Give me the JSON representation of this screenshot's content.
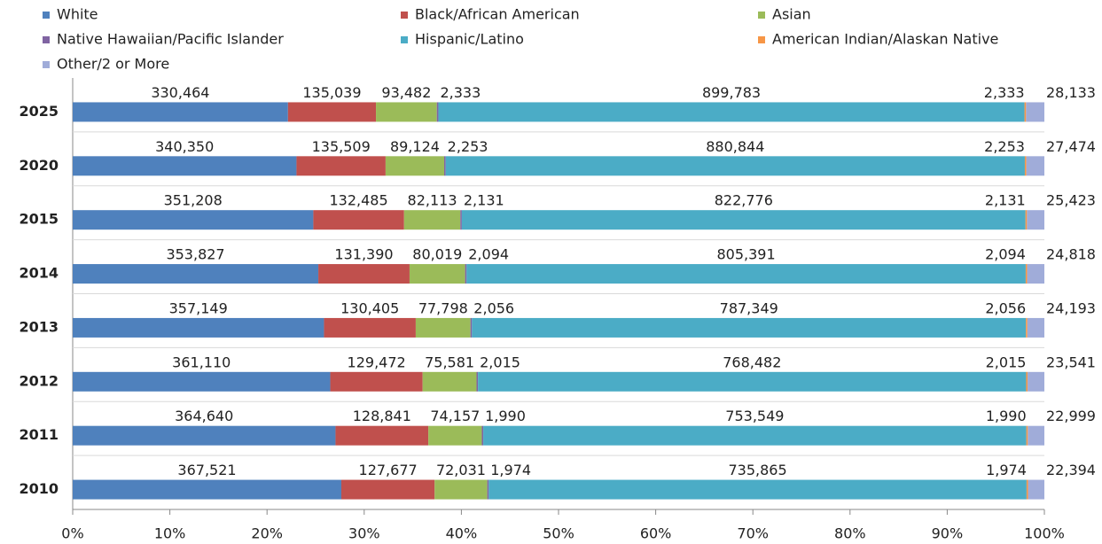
{
  "chart_data": {
    "type": "bar",
    "orientation": "horizontal",
    "stacked": "percent",
    "categories": [
      "2025",
      "2020",
      "2015",
      "2014",
      "2013",
      "2012",
      "2011",
      "2010"
    ],
    "series": [
      {
        "name": "White",
        "color": "#4f81bd",
        "values": [
          330464,
          340350,
          351208,
          353827,
          357149,
          361110,
          364640,
          367521
        ],
        "value_labels": [
          "330,464",
          "340,350",
          "351,208",
          "353,827",
          "357,149",
          "361,110",
          "364,640",
          "367,521"
        ]
      },
      {
        "name": "Black/African American",
        "color": "#c0504d",
        "values": [
          135039,
          135509,
          132485,
          131390,
          130405,
          129472,
          128841,
          127677
        ],
        "value_labels": [
          "135,039",
          "135,509",
          "132,485",
          "131,390",
          "130,405",
          "129,472",
          "128,841",
          "127,677"
        ]
      },
      {
        "name": "Asian",
        "color": "#9bbb59",
        "values": [
          93482,
          89124,
          82113,
          80019,
          77798,
          75581,
          74157,
          72031
        ],
        "value_labels": [
          "93,482",
          "89,124",
          "82,113",
          "80,019",
          "77,798",
          "75,581",
          "74,157",
          "72,031"
        ]
      },
      {
        "name": "Native Hawaiian/Pacific Islander",
        "color": "#8064a2",
        "values": [
          2333,
          2253,
          2131,
          2094,
          2056,
          2015,
          1990,
          1974
        ],
        "value_labels": [
          "2,333",
          "2,253",
          "2,131",
          "2,094",
          "2,056",
          "2,015",
          "1,990",
          "1,974"
        ]
      },
      {
        "name": "Hispanic/Latino",
        "color": "#4bacc6",
        "values": [
          899783,
          880844,
          822776,
          805391,
          787349,
          768482,
          753549,
          735865
        ],
        "value_labels": [
          "899,783",
          "880,844",
          "822,776",
          "805,391",
          "787,349",
          "768,482",
          "753,549",
          "735,865"
        ]
      },
      {
        "name": "American Indian/Alaskan Native",
        "color": "#f79646",
        "values": [
          2333,
          2253,
          2131,
          2094,
          2056,
          2015,
          1990,
          1974
        ],
        "value_labels": [
          "2,333",
          "2,253",
          "2,131",
          "2,094",
          "2,056",
          "2,015",
          "1,990",
          "1,974"
        ]
      },
      {
        "name": "Other/2 or More",
        "color": "#a0acd9",
        "values": [
          28133,
          27474,
          25423,
          24818,
          24193,
          23541,
          22999,
          22394
        ],
        "value_labels": [
          "28,133",
          "27,474",
          "25,423",
          "24,818",
          "24,193",
          "23,541",
          "22,999",
          "22,394"
        ]
      }
    ],
    "xlim": [
      0,
      100
    ],
    "xticks": [
      {
        "value": 0,
        "label": "0%"
      },
      {
        "value": 10,
        "label": "10%"
      },
      {
        "value": 20,
        "label": "20%"
      },
      {
        "value": 30,
        "label": "30%"
      },
      {
        "value": 40,
        "label": "40%"
      },
      {
        "value": 50,
        "label": "50%"
      },
      {
        "value": 60,
        "label": "60%"
      },
      {
        "value": 70,
        "label": "70%"
      },
      {
        "value": 80,
        "label": "80%"
      },
      {
        "value": 90,
        "label": "90%"
      },
      {
        "value": 100,
        "label": "100%"
      }
    ],
    "legend": "top",
    "grid": true
  }
}
